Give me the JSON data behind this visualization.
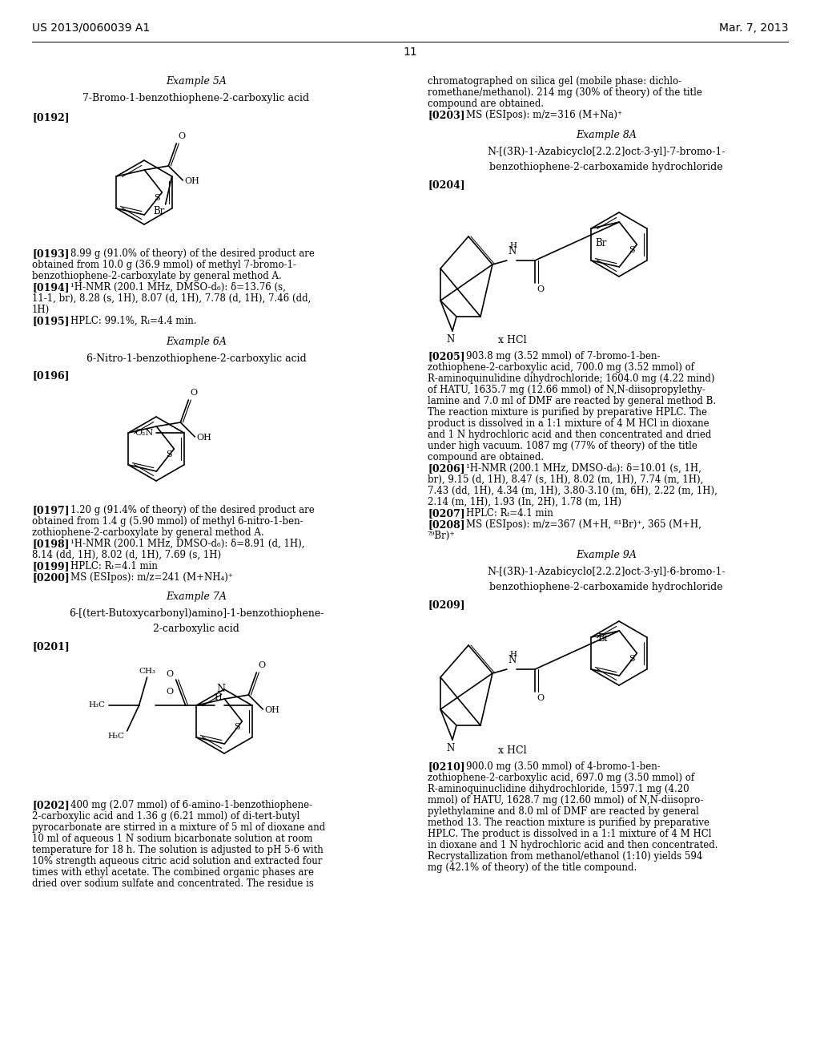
{
  "bg": "#ffffff",
  "text_color": "#000000",
  "header_left": "US 2013/0060039 A1",
  "header_right": "Mar. 7, 2013",
  "page_num": "11"
}
